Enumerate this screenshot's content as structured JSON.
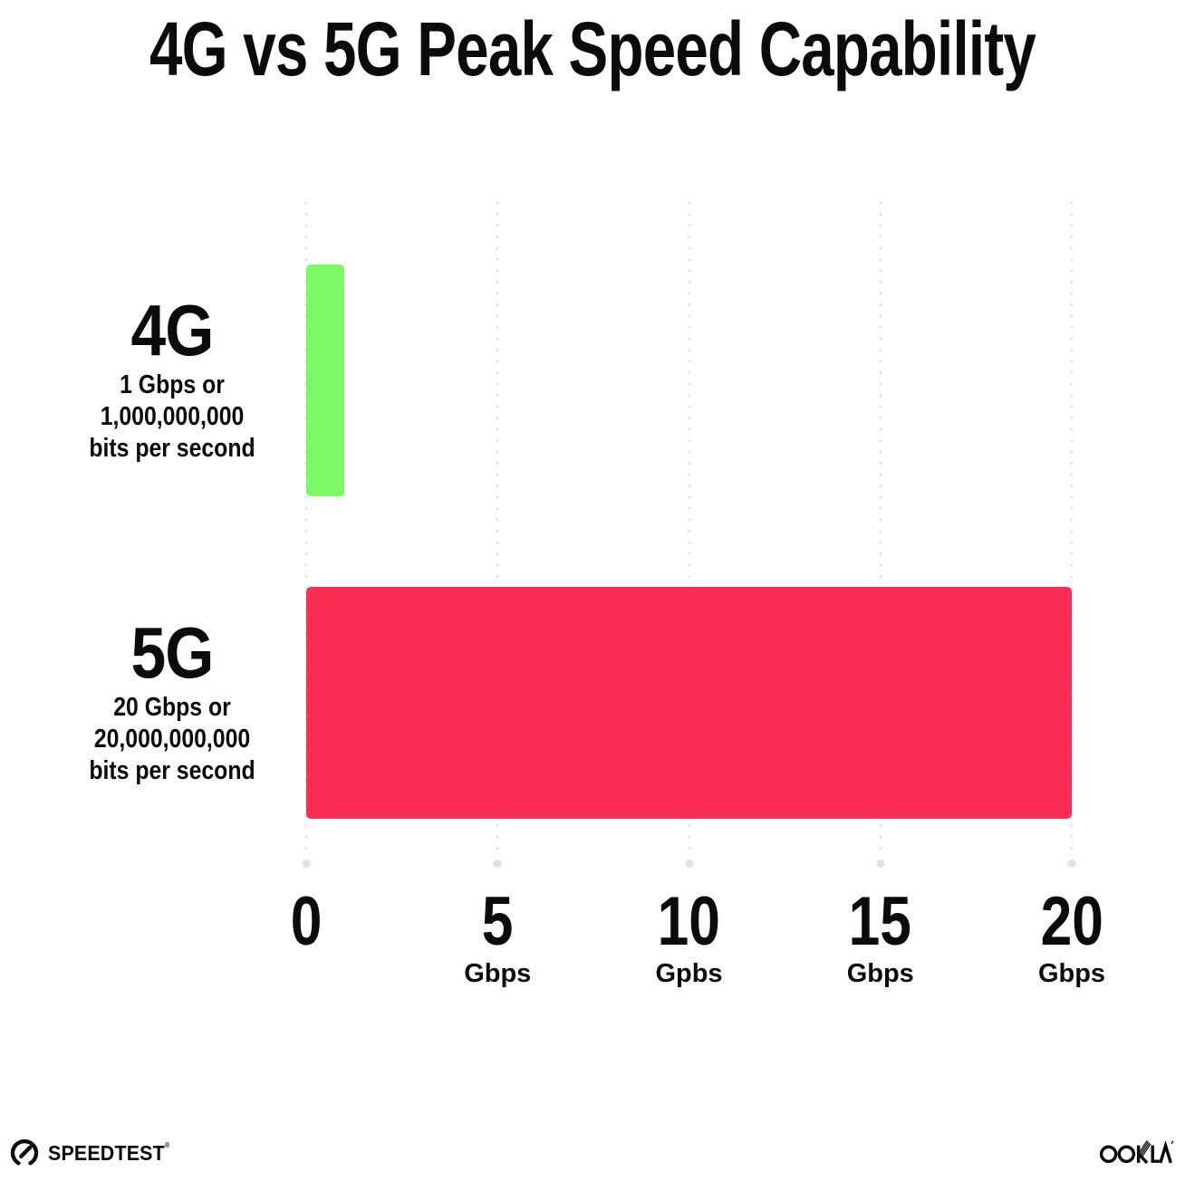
{
  "chart_data": {
    "type": "bar",
    "orientation": "horizontal",
    "title": "4G vs 5G Peak Speed Capability",
    "categories": [
      "4G",
      "5G"
    ],
    "values": [
      1,
      20
    ],
    "xlim": [
      0,
      20
    ],
    "xlabel": "Gbps",
    "grid": "dotted vertical gridlines at 0, 5, 10, 15, 20",
    "legend": "none",
    "bars": [
      {
        "label": "4G",
        "desc_lines": [
          "1 Gbps or",
          "1,000,000,000",
          "bits per second"
        ],
        "value": 1,
        "color": "#7cf766"
      },
      {
        "label": "5G",
        "desc_lines": [
          "20 Gbps or",
          "20,000,000,000",
          "bits per second"
        ],
        "value": 20,
        "color": "#fc2e56"
      }
    ],
    "x_ticks": [
      {
        "value": 0,
        "label": "0",
        "unit": ""
      },
      {
        "value": 5,
        "label": "5",
        "unit": "Gbps"
      },
      {
        "value": 10,
        "label": "10",
        "unit": "Gpbs"
      },
      {
        "value": 15,
        "label": "15",
        "unit": "Gbps"
      },
      {
        "value": 20,
        "label": "20",
        "unit": "Gbps"
      }
    ]
  },
  "colors": {
    "background": "#ffffff",
    "text": "#0b0b0b",
    "grid_dot": "#e3e3ee",
    "grid_end_dot": "#dfdfeb",
    "bar_4g": "#7cf766",
    "bar_5g": "#fc2e56"
  },
  "footer": {
    "speedtest_label": "SPEEDTEST",
    "speedtest_trademark": "®",
    "ookla_label": "OOKLA"
  }
}
